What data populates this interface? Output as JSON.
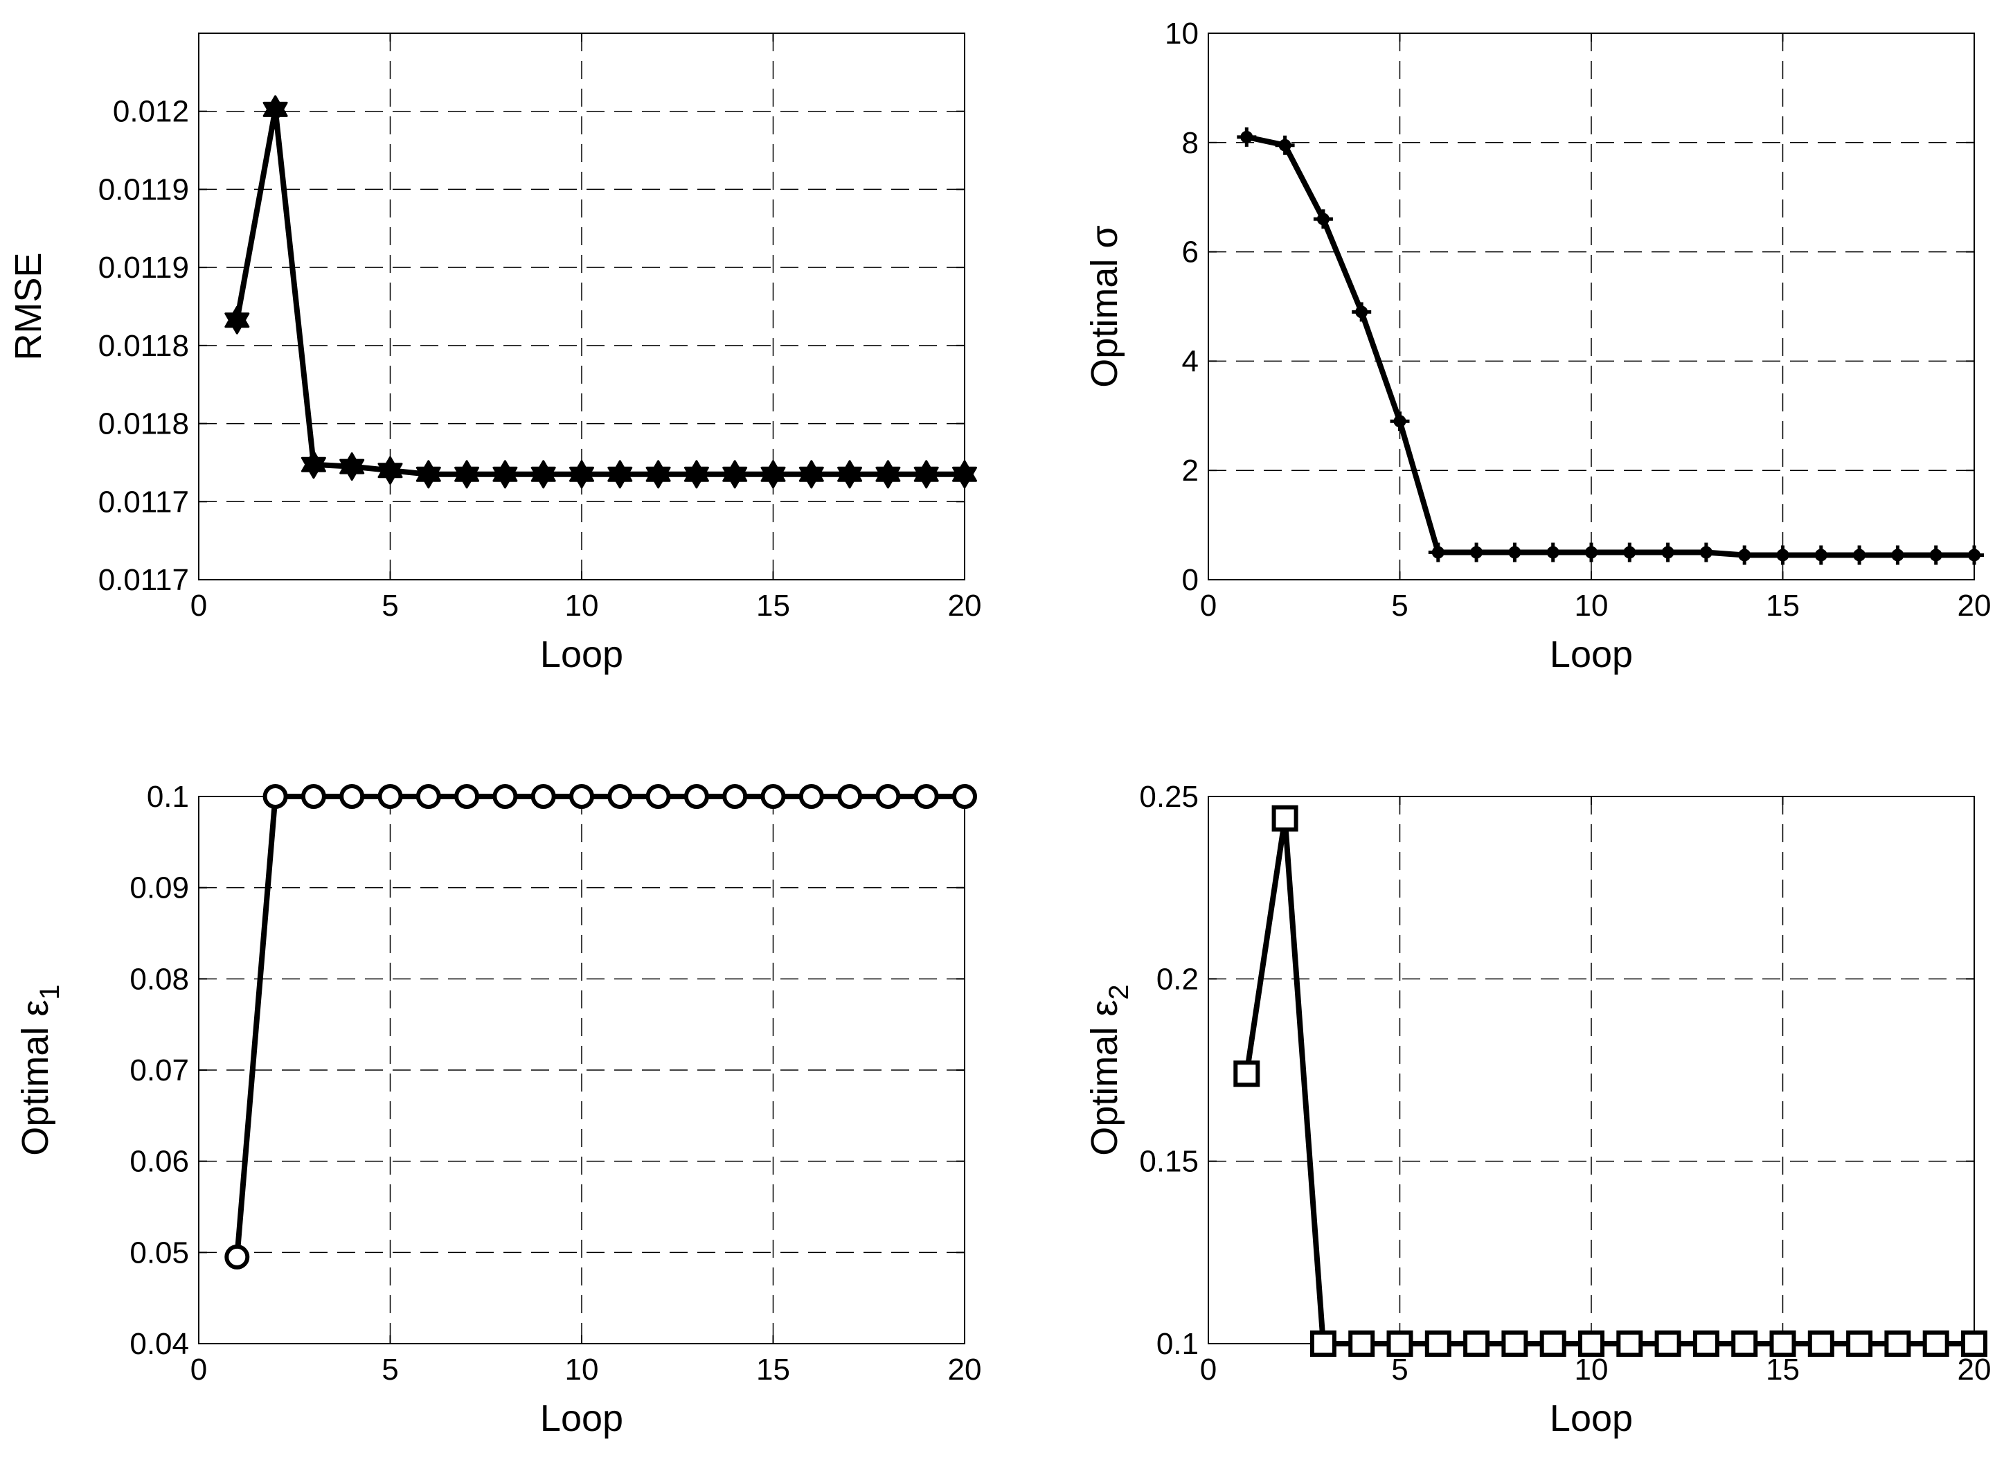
{
  "chart_data": [
    {
      "type": "line",
      "xlabel": "Loop",
      "ylabel": "RMSE",
      "xlim": [
        0,
        20
      ],
      "ylim": [
        0.01168,
        0.01196
      ],
      "xticks": [
        0,
        5,
        10,
        15,
        20
      ],
      "yticks": [
        0.01168,
        0.01172,
        0.01176,
        0.0118,
        0.01184,
        0.01188,
        0.01192,
        0.01196
      ],
      "yticklabels": [
        "0.0117",
        "0.0117",
        "0.0118",
        "0.0118",
        "0.0119",
        "0.0119",
        "0.012",
        ""
      ],
      "ytick_labels_override": [
        "0.0117",
        "0.0117",
        "0.0118",
        "0.0118",
        "0.0119",
        "0.0119",
        "0.012"
      ],
      "grid": true,
      "marker": "hexagram",
      "x": [
        1,
        2,
        3,
        4,
        5,
        6,
        7,
        8,
        9,
        10,
        11,
        12,
        13,
        14,
        15,
        16,
        17,
        18,
        19,
        20
      ],
      "values": [
        0.011813,
        0.011921,
        0.011739,
        0.011738,
        0.011736,
        0.011734,
        0.011734,
        0.011734,
        0.011734,
        0.011734,
        0.011734,
        0.011734,
        0.011734,
        0.011734,
        0.011734,
        0.011734,
        0.011734,
        0.011734,
        0.011734,
        0.011734
      ]
    },
    {
      "type": "line",
      "xlabel": "Loop",
      "ylabel": "Optimal σ",
      "xlim": [
        0,
        20
      ],
      "ylim": [
        0,
        10
      ],
      "xticks": [
        0,
        5,
        10,
        15,
        20
      ],
      "yticks": [
        0,
        2,
        4,
        6,
        8,
        10
      ],
      "yticklabels": [
        "0",
        "2",
        "4",
        "6",
        "8",
        "10"
      ],
      "grid": true,
      "marker": "plus",
      "x": [
        1,
        2,
        3,
        4,
        5,
        6,
        7,
        8,
        9,
        10,
        11,
        12,
        13,
        14,
        15,
        16,
        17,
        18,
        19,
        20
      ],
      "values": [
        8.1,
        7.95,
        6.6,
        4.9,
        2.9,
        0.5,
        0.5,
        0.5,
        0.5,
        0.5,
        0.5,
        0.5,
        0.5,
        0.45,
        0.45,
        0.45,
        0.45,
        0.45,
        0.45,
        0.45
      ]
    },
    {
      "type": "line",
      "xlabel": "Loop",
      "ylabel": "Optimal ε",
      "ylabel_sub": "1",
      "xlim": [
        0,
        20
      ],
      "ylim": [
        0.04,
        0.1
      ],
      "xticks": [
        0,
        5,
        10,
        15,
        20
      ],
      "yticks": [
        0.04,
        0.05,
        0.06,
        0.07,
        0.08,
        0.09,
        0.1
      ],
      "yticklabels": [
        "0.04",
        "0.05",
        "0.06",
        "0.07",
        "0.08",
        "0.09",
        "0.1"
      ],
      "grid": true,
      "marker": "circle",
      "x": [
        1,
        2,
        3,
        4,
        5,
        6,
        7,
        8,
        9,
        10,
        11,
        12,
        13,
        14,
        15,
        16,
        17,
        18,
        19,
        20
      ],
      "values": [
        0.0495,
        0.1,
        0.1,
        0.1,
        0.1,
        0.1,
        0.1,
        0.1,
        0.1,
        0.1,
        0.1,
        0.1,
        0.1,
        0.1,
        0.1,
        0.1,
        0.1,
        0.1,
        0.1,
        0.1
      ]
    },
    {
      "type": "line",
      "xlabel": "Loop",
      "ylabel": "Optimal ε",
      "ylabel_sub": "2",
      "xlim": [
        0,
        20
      ],
      "ylim": [
        0.1,
        0.25
      ],
      "xticks": [
        0,
        5,
        10,
        15,
        20
      ],
      "yticks": [
        0.1,
        0.15,
        0.2,
        0.25
      ],
      "yticklabels": [
        "0.1",
        "0.15",
        "0.2",
        "0.25"
      ],
      "grid": true,
      "marker": "square",
      "x": [
        1,
        2,
        3,
        4,
        5,
        6,
        7,
        8,
        9,
        10,
        11,
        12,
        13,
        14,
        15,
        16,
        17,
        18,
        19,
        20
      ],
      "values": [
        0.174,
        0.244,
        0.1,
        0.1,
        0.1,
        0.1,
        0.1,
        0.1,
        0.1,
        0.1,
        0.1,
        0.1,
        0.1,
        0.1,
        0.1,
        0.1,
        0.1,
        0.1,
        0.1,
        0.1
      ]
    }
  ]
}
